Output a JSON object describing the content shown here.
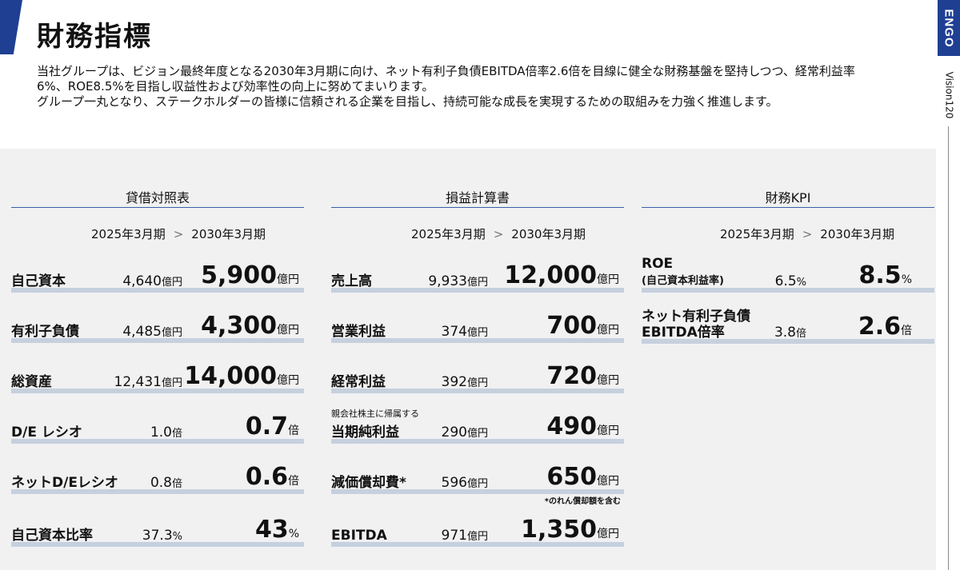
{
  "header": {
    "title": "財務指標",
    "intro": [
      "当社グループは、ビジョン最終年度となる2030年3月期に向け、ネット有利子負債EBITDA倍率2.6倍を目線に健全な財務基盤を堅持しつつ、経常利益率",
      "6%、ROE8.5%を目指し収益性および効率性の向上に努めてまいります。",
      "グループ一丸となり、ステークホルダーの皆様に信頼される企業を目指し、持続可能な成長を実現するための取組みを力強く推進します。"
    ]
  },
  "sidebar": {
    "logo": "ENGO",
    "vision": "Vision120"
  },
  "colors": {
    "brand": "#1f3f93",
    "bar": "#c6d0de",
    "panel": "#f1f1f2"
  },
  "years": {
    "from": "2025年3月期",
    "arrow": ">",
    "to": "2030年3月期"
  },
  "balance_sheet": {
    "title": "貸借対照表",
    "rows": [
      {
        "label": "自己資本",
        "v2025": "4,640",
        "u2025": "億円",
        "v2030": "5,900",
        "u2030": "億円"
      },
      {
        "label": "有利子負債",
        "v2025": "4,485",
        "u2025": "億円",
        "v2030": "4,300",
        "u2030": "億円"
      },
      {
        "label": "総資産",
        "v2025": "12,431",
        "u2025": "億円",
        "v2030": "14,000",
        "u2030": "億円"
      },
      {
        "label": "D/E レシオ",
        "v2025": "1.0",
        "u2025": "倍",
        "v2030": "0.7",
        "u2030": "倍"
      },
      {
        "label": "ネットD/Eレシオ",
        "v2025": "0.8",
        "u2025": "倍",
        "v2030": "0.6",
        "u2030": "倍"
      },
      {
        "label": "自己資本比率",
        "v2025": "37.3",
        "u2025": "%",
        "v2030": "43",
        "u2030": "%"
      }
    ]
  },
  "income_statement": {
    "title": "損益計算書",
    "rows": [
      {
        "label": "売上高",
        "v2025": "9,933",
        "u2025": "億円",
        "v2030": "12,000",
        "u2030": "億円"
      },
      {
        "label": "営業利益",
        "v2025": "374",
        "u2025": "億円",
        "v2030": "700",
        "u2030": "億円"
      },
      {
        "label": "経常利益",
        "v2025": "392",
        "u2025": "億円",
        "v2030": "720",
        "u2030": "億円"
      },
      {
        "label_small": "親会社株主に帰属する",
        "label": "当期純利益",
        "v2025": "290",
        "u2025": "億円",
        "v2030": "490",
        "u2030": "億円"
      },
      {
        "label": "減価償却費*",
        "v2025": "596",
        "u2025": "億円",
        "v2030": "650",
        "u2030": "億円"
      },
      {
        "label": "EBITDA",
        "v2025": "971",
        "u2025": "億円",
        "v2030": "1,350",
        "u2030": "億円"
      }
    ],
    "note": "*のれん償却額を含む"
  },
  "kpi": {
    "title": "財務KPI",
    "rows": [
      {
        "label": "ROE",
        "sub": "(自己資本利益率)",
        "v2025": "6.5",
        "u2025": "%",
        "v2030": "8.5",
        "u2030": "%"
      },
      {
        "label": "ネット有利子負債",
        "sub": "EBITDA倍率",
        "v2025": "3.8",
        "u2025": "倍",
        "v2030": "2.6",
        "u2030": "倍"
      }
    ]
  }
}
